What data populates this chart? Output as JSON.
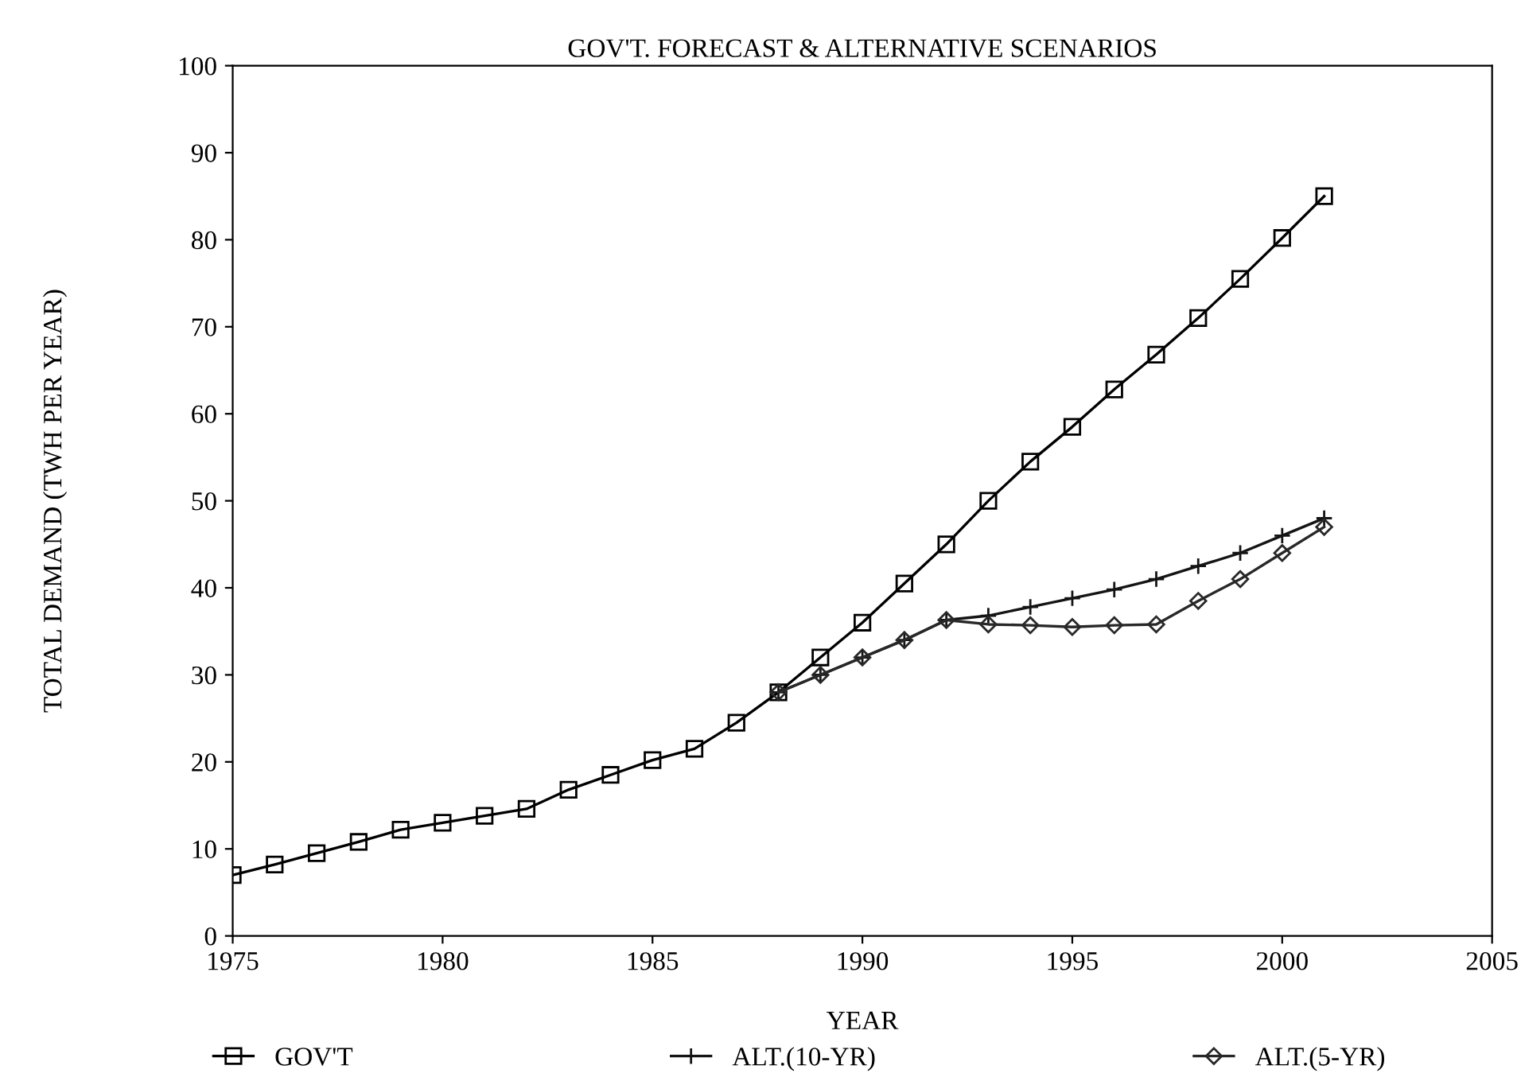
{
  "chart_data": {
    "type": "line",
    "title": "GOV'T. FORECAST & ALTERNATIVE SCENARIOS",
    "xlabel": "YEAR",
    "ylabel": "TOTAL DEMAND (TWH PER YEAR)",
    "xlim": [
      1975,
      2005
    ],
    "xticks": [
      1975,
      1980,
      1985,
      1990,
      1995,
      2000,
      2005
    ],
    "ylim": [
      0,
      100
    ],
    "yticks": [
      0,
      10,
      20,
      30,
      40,
      50,
      60,
      70,
      80,
      90,
      100
    ],
    "grid": false,
    "legend": "bottom",
    "series": [
      {
        "name": "GOV'T",
        "color": "#000000",
        "marker": "square",
        "x": [
          1975,
          1976,
          1977,
          1978,
          1979,
          1980,
          1981,
          1982,
          1983,
          1984,
          1985,
          1986,
          1987,
          1988,
          1989,
          1990,
          1991,
          1992,
          1993,
          1994,
          1995,
          1996,
          1997,
          1998,
          1999,
          2000,
          2001
        ],
        "values": [
          7,
          8.2,
          9.5,
          10.8,
          12.2,
          13,
          13.8,
          14.6,
          16.8,
          18.5,
          20.2,
          21.5,
          24.5,
          28,
          32,
          36,
          40.5,
          45,
          50,
          54.5,
          58.5,
          62.8,
          66.8,
          71,
          75.5,
          80.2,
          85
        ]
      },
      {
        "name": "ALT.(10-YR)",
        "color": "#141414",
        "marker": "cross",
        "x": [
          1988,
          1989,
          1990,
          1991,
          1992,
          1993,
          1994,
          1995,
          1996,
          1997,
          1998,
          1999,
          2000,
          2001
        ],
        "values": [
          28,
          30,
          32,
          34,
          36.3,
          36.8,
          37.8,
          38.8,
          39.8,
          41,
          42.5,
          44,
          46,
          48
        ]
      },
      {
        "name": "ALT.(5-YR)",
        "color": "#282828",
        "marker": "diamond",
        "x": [
          1988,
          1989,
          1990,
          1991,
          1992,
          1993,
          1994,
          1995,
          1996,
          1997,
          1998,
          1999,
          2000,
          2001
        ],
        "values": [
          28,
          30,
          32,
          34,
          36.3,
          35.8,
          35.7,
          35.5,
          35.7,
          35.8,
          38.5,
          41,
          44,
          47
        ]
      }
    ]
  }
}
